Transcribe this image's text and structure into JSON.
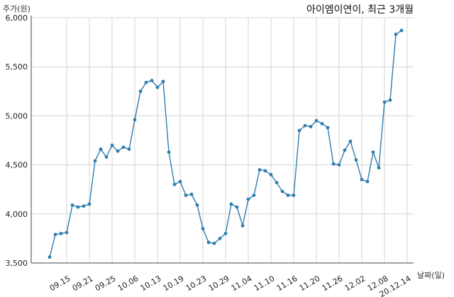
{
  "chart_data": {
    "type": "line",
    "title": "아이엠이연이, 최근 3개월",
    "ylabel": "주가(원)",
    "xlabel": "날짜(일)",
    "ylim": [
      3500,
      6000
    ],
    "yticks": [
      3500,
      4000,
      4500,
      5000,
      5500,
      6000
    ],
    "ytick_labels": [
      "3,500",
      "4,000",
      "4,500",
      "5,000",
      "5,500",
      "6,000"
    ],
    "xtick_labels": [
      "09.15",
      "09.21",
      "09.25",
      "10.06",
      "10.13",
      "10.19",
      "10.23",
      "10.29",
      "11.04",
      "11.10",
      "11.16",
      "11.20",
      "11.26",
      "12.02",
      "12.08",
      "20.12.14"
    ],
    "xtick_indices": [
      3,
      7,
      11,
      15,
      19,
      23,
      27,
      31,
      35,
      39,
      43,
      47,
      51,
      55,
      59,
      63
    ],
    "grid": true,
    "line_color": "#2e7eb0",
    "series": [
      {
        "values": [
          3560,
          3790,
          3800,
          3810,
          4090,
          4070,
          4080,
          4100,
          4540,
          4660,
          4580,
          4700,
          4640,
          4680,
          4660,
          4960,
          5250,
          5340,
          5360,
          5290,
          5350,
          4630,
          4300,
          4330,
          4190,
          4200,
          4090,
          3850,
          3710,
          3700,
          3750,
          3800,
          4100,
          4070,
          3880,
          4150,
          4190,
          4450,
          4440,
          4400,
          4320,
          4230,
          4190,
          4190,
          4850,
          4900,
          4890,
          4950,
          4920,
          4880,
          4510,
          4500,
          4650,
          4740,
          4550,
          4350,
          4330,
          4630,
          4470,
          5140,
          5160,
          5830,
          5870
        ]
      }
    ]
  }
}
